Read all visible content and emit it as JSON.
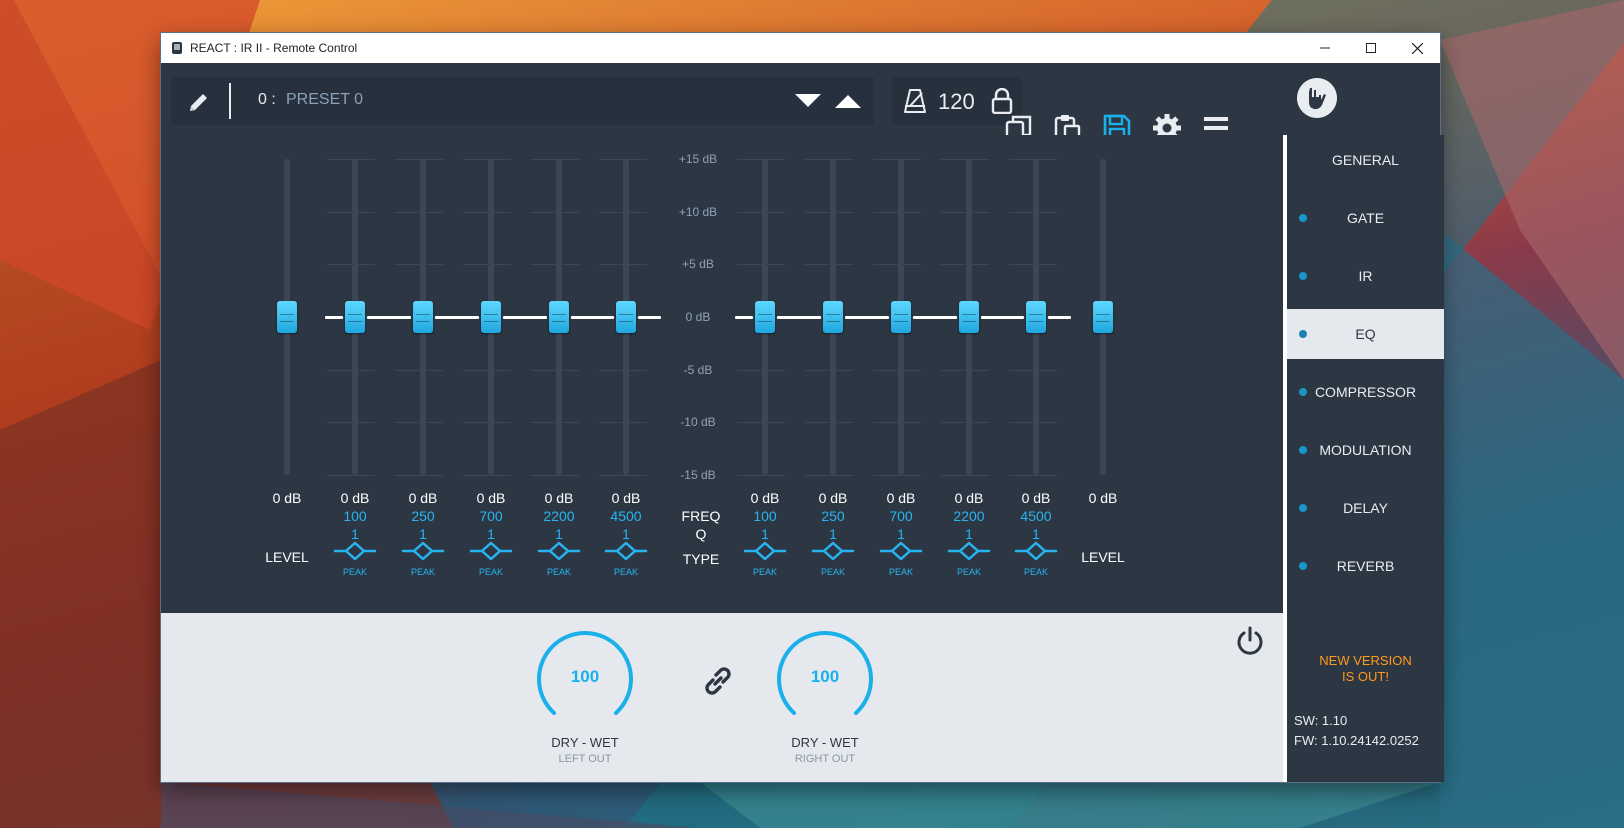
{
  "window": {
    "title": "REACT : IR II - Remote Control"
  },
  "titlebar": {
    "minimize_icon": "minimize-icon",
    "maximize_icon": "maximize-icon",
    "close_icon": "close-icon"
  },
  "toolbar": {
    "preset_number": "0 :",
    "preset_name": "PRESET 0",
    "tempo": "120",
    "icons": [
      "pencil-icon",
      "arrow-down-icon",
      "arrow-up-icon",
      "metronome-icon",
      "lock-icon",
      "copy-icon",
      "paste-icon",
      "save-icon",
      "gear-icon",
      "menu-icon",
      "logo-hand-icon"
    ]
  },
  "colors": {
    "accent": "#1ab0ea",
    "panel": "#2d3744",
    "panel_dark": "#27313d",
    "light": "#e5e9ee",
    "warning": "#ff9a1a"
  },
  "eq": {
    "scale": [
      "+15 dB",
      "+10 dB",
      "+5 dB",
      "0 dB",
      "-5 dB",
      "-10 dB",
      "-15 dB"
    ],
    "freq_label": "FREQ",
    "q_label": "Q",
    "type_label": "TYPE",
    "level_label": "LEVEL",
    "left": {
      "level": {
        "value_db": 0,
        "label": "0 dB"
      },
      "bands": [
        {
          "gain_db": 0,
          "gain": "0 dB",
          "freq": "100",
          "q": "1",
          "type": "PEAK"
        },
        {
          "gain_db": 0,
          "gain": "0 dB",
          "freq": "250",
          "q": "1",
          "type": "PEAK"
        },
        {
          "gain_db": 0,
          "gain": "0 dB",
          "freq": "700",
          "q": "1",
          "type": "PEAK"
        },
        {
          "gain_db": 0,
          "gain": "0 dB",
          "freq": "2200",
          "q": "1",
          "type": "PEAK"
        },
        {
          "gain_db": 0,
          "gain": "0 dB",
          "freq": "4500",
          "q": "1",
          "type": "PEAK"
        }
      ]
    },
    "right": {
      "level": {
        "value_db": 0,
        "label": "0 dB"
      },
      "bands": [
        {
          "gain_db": 0,
          "gain": "0 dB",
          "freq": "100",
          "q": "1",
          "type": "PEAK"
        },
        {
          "gain_db": 0,
          "gain": "0 dB",
          "freq": "250",
          "q": "1",
          "type": "PEAK"
        },
        {
          "gain_db": 0,
          "gain": "0 dB",
          "freq": "700",
          "q": "1",
          "type": "PEAK"
        },
        {
          "gain_db": 0,
          "gain": "0 dB",
          "freq": "2200",
          "q": "1",
          "type": "PEAK"
        },
        {
          "gain_db": 0,
          "gain": "0 dB",
          "freq": "4500",
          "q": "1",
          "type": "PEAK"
        }
      ]
    }
  },
  "mix": {
    "left": {
      "value": "100",
      "label": "DRY - WET",
      "sub": "LEFT OUT"
    },
    "right": {
      "value": "100",
      "label": "DRY - WET",
      "sub": "RIGHT OUT"
    },
    "link_icon": "link-icon",
    "power_icon": "power-icon"
  },
  "sidebar": {
    "items": [
      {
        "label": "GENERAL",
        "dot": false,
        "active": false
      },
      {
        "label": "GATE",
        "dot": true,
        "active": false
      },
      {
        "label": "IR",
        "dot": true,
        "active": false
      },
      {
        "label": "EQ",
        "dot": true,
        "active": true
      },
      {
        "label": "COMPRESSOR",
        "dot": true,
        "active": false
      },
      {
        "label": "MODULATION",
        "dot": true,
        "active": false
      },
      {
        "label": "DELAY",
        "dot": true,
        "active": false
      },
      {
        "label": "REVERB",
        "dot": true,
        "active": false
      }
    ],
    "new_version_line1": "NEW VERSION",
    "new_version_line2": "IS OUT!",
    "sw": "SW: 1.10",
    "fw": "FW: 1.10.24142.0252"
  }
}
